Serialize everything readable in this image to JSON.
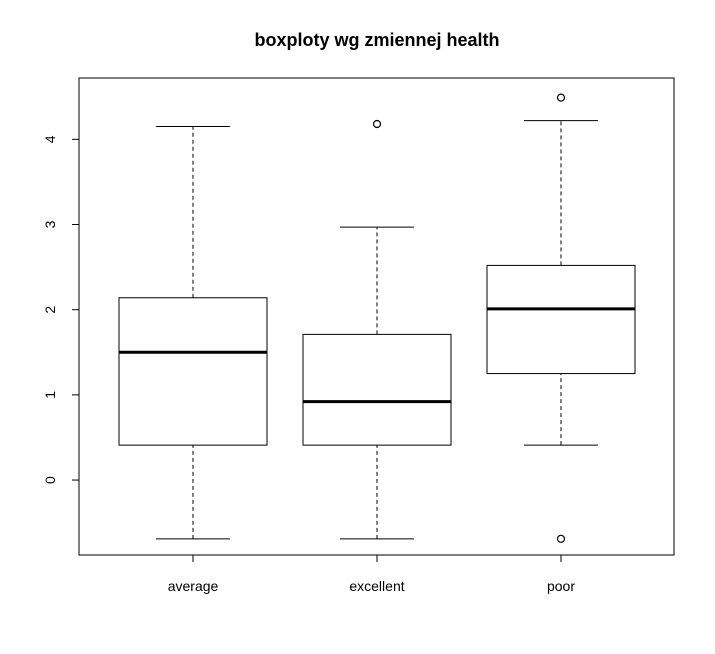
{
  "chart_data": {
    "type": "boxplot",
    "title": "boxploty wg zmiennej health",
    "xlabel": "",
    "ylabel": "",
    "categories": [
      "average",
      "excellent",
      "poor"
    ],
    "ylim": [
      -0.88,
      4.72
    ],
    "yticks": [
      0,
      1,
      2,
      3,
      4
    ],
    "ytick_labels": [
      "0",
      "1",
      "2",
      "3",
      "4"
    ],
    "boxes": [
      {
        "category": "average",
        "whisker_low": -0.69,
        "q1": 0.41,
        "median": 1.5,
        "q3": 2.14,
        "whisker_high": 4.15,
        "outliers": []
      },
      {
        "category": "excellent",
        "whisker_low": -0.69,
        "q1": 0.41,
        "median": 0.92,
        "q3": 1.71,
        "whisker_high": 2.97,
        "outliers": [
          4.18
        ]
      },
      {
        "category": "poor",
        "whisker_low": 0.41,
        "q1": 1.25,
        "median": 2.01,
        "q3": 2.52,
        "whisker_high": 4.22,
        "outliers": [
          4.49,
          -0.69
        ]
      }
    ],
    "grid": false,
    "legend": "none",
    "colors": {
      "box_stroke": "#000000",
      "median": "#000000",
      "background": "#ffffff"
    }
  }
}
